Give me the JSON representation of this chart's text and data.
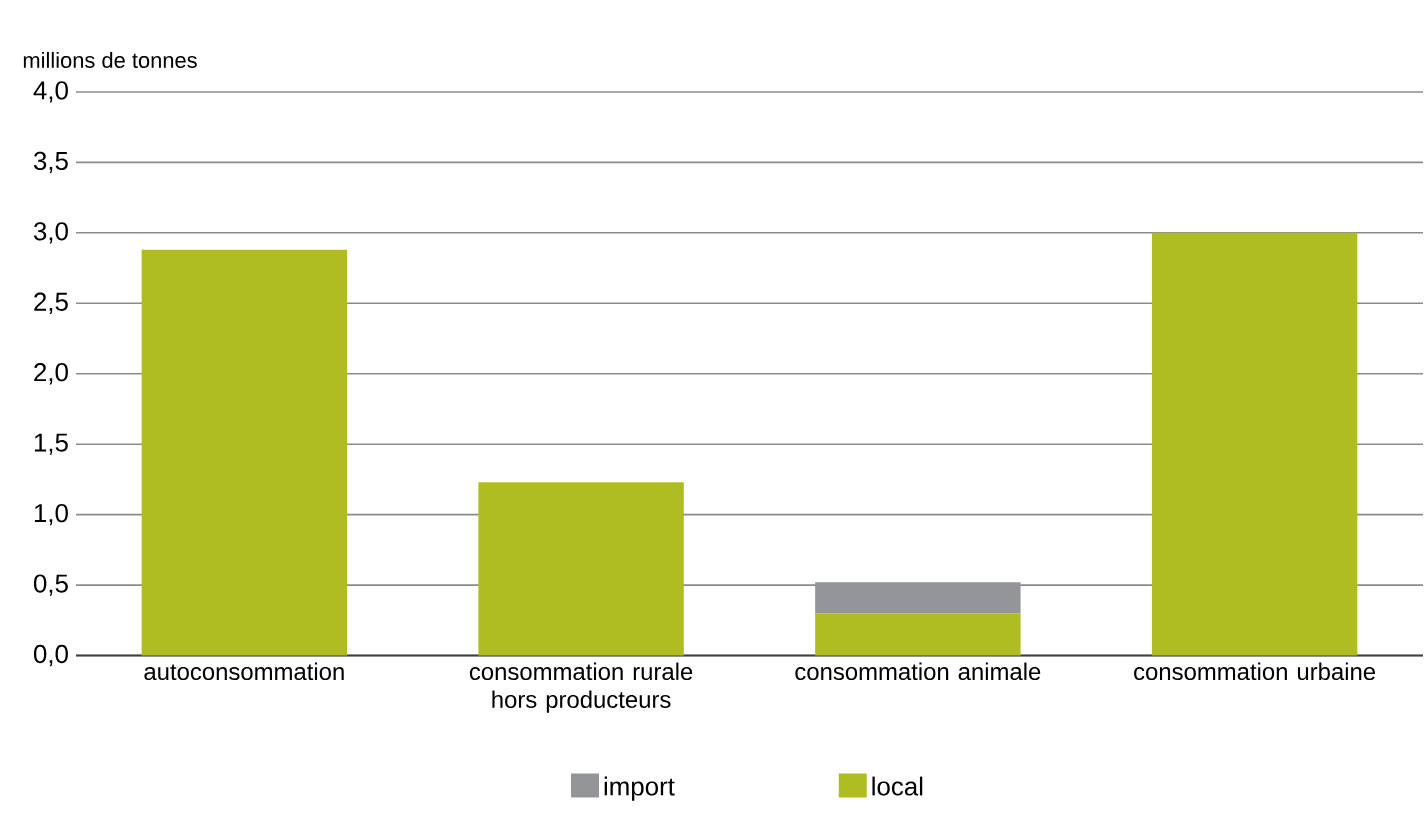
{
  "chart_data": {
    "type": "bar",
    "stacked": true,
    "ylabel": "millions de tonnes",
    "categories": [
      "autoconsommation",
      "consommation rurale hors producteurs",
      "consommation animale",
      "consommation urbaine"
    ],
    "series": [
      {
        "name": "local",
        "color": "#afbd22",
        "values": [
          2.88,
          1.23,
          0.3,
          3.0
        ]
      },
      {
        "name": "import",
        "color": "#939598",
        "values": [
          0,
          0,
          0.22,
          0
        ]
      }
    ],
    "ylim": [
      0,
      4
    ],
    "yticks": [
      {
        "value": 0,
        "label": "0,0"
      },
      {
        "value": 0.5,
        "label": "0,5"
      },
      {
        "value": 1,
        "label": "1,0"
      },
      {
        "value": 1.5,
        "label": "1,5"
      },
      {
        "value": 2,
        "label": "2,0"
      },
      {
        "value": 2.5,
        "label": "2,5"
      },
      {
        "value": 3,
        "label": "3,0"
      },
      {
        "value": 3.5,
        "label": "3,5"
      },
      {
        "value": 4,
        "label": "4,0"
      }
    ],
    "grid": "y",
    "legend": "bottom"
  }
}
